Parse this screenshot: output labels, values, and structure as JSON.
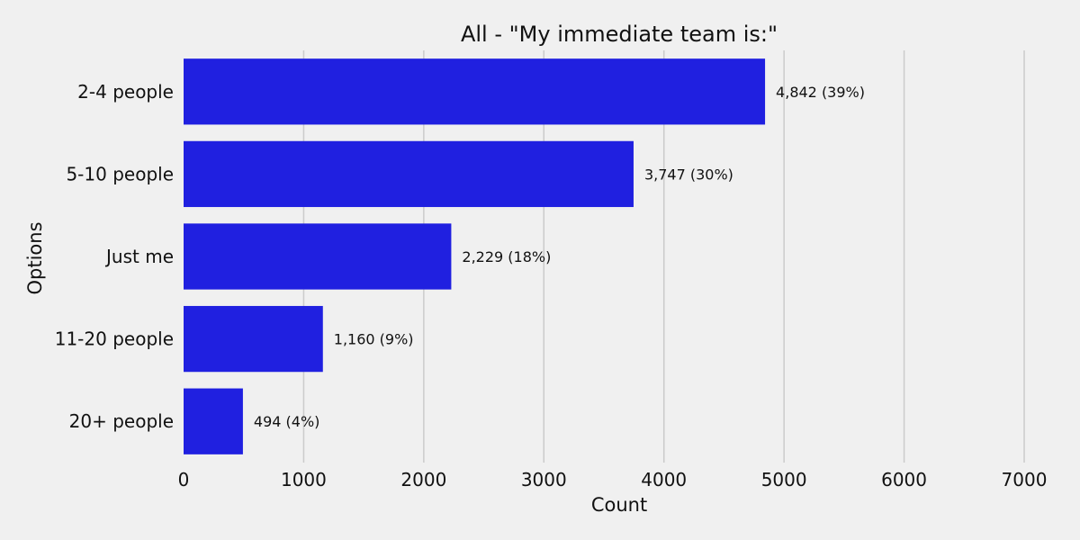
{
  "chart_data": {
    "type": "bar",
    "orientation": "horizontal",
    "title": "All - \"My immediate team is:\"",
    "xlabel": "Count",
    "ylabel": "Options",
    "categories": [
      "2-4 people",
      "5-10 people",
      "Just me",
      "11-20 people",
      "20+ people"
    ],
    "values": [
      4842,
      3747,
      2229,
      1160,
      494
    ],
    "data_labels": [
      "4,842 (39%)",
      "3,747 (30%)",
      "2,229 (18%)",
      "1,160 (9%)",
      "494 (4%)"
    ],
    "xlim": [
      0,
      7000
    ],
    "xticks": [
      0,
      1000,
      2000,
      3000,
      4000,
      5000,
      6000,
      7000
    ],
    "grid": "vertical",
    "bar_color": "#2020e0"
  }
}
